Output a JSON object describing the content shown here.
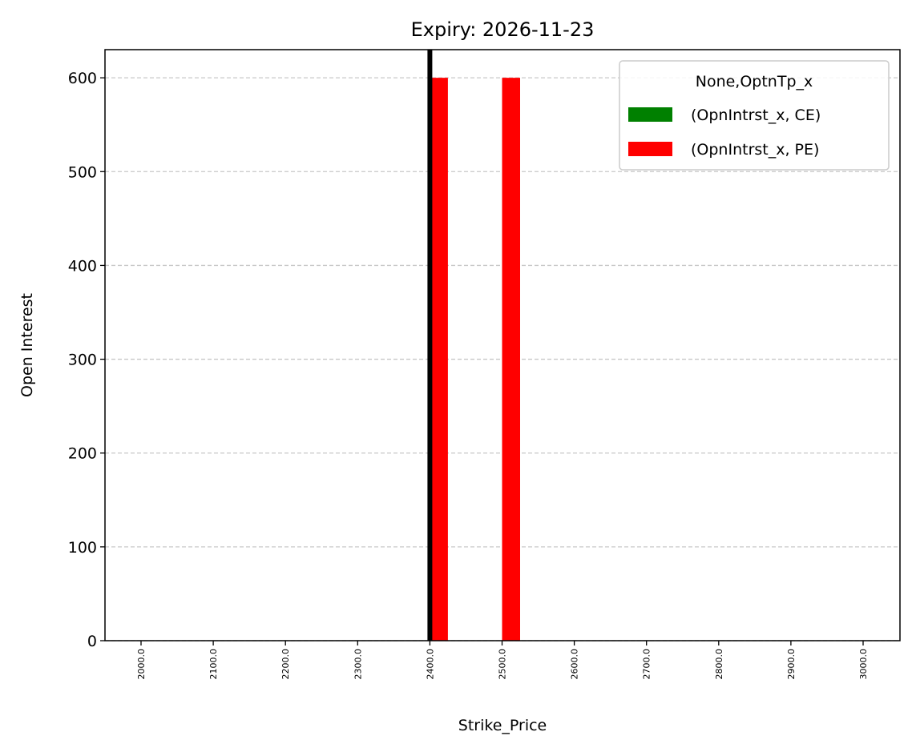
{
  "chart_data": {
    "type": "bar",
    "title": "Expiry: 2026-11-23",
    "xlabel": "Strike_Price",
    "ylabel": "Open Interest",
    "categories": [
      "2000.0",
      "2100.0",
      "2200.0",
      "2300.0",
      "2400.0",
      "2500.0",
      "2600.0",
      "2700.0",
      "2800.0",
      "2900.0",
      "3000.0"
    ],
    "series": [
      {
        "name": "(OpnIntrst_x, CE)",
        "color": "#008000",
        "values": [
          0,
          0,
          0,
          0,
          0,
          0,
          0,
          0,
          0,
          0,
          0
        ]
      },
      {
        "name": "(OpnIntrst_x, PE)",
        "color": "#ff0000",
        "values": [
          0,
          0,
          0,
          0,
          600,
          600,
          0,
          0,
          0,
          0,
          0
        ]
      }
    ],
    "ylim": [
      0,
      630
    ],
    "yticks": [
      0,
      100,
      200,
      300,
      400,
      500,
      600
    ],
    "grid": "y-dashed",
    "legend": {
      "title": "None,OptnTp_x",
      "placement": "top-right"
    },
    "reference_line": {
      "category": "2400.0",
      "color": "#000000"
    }
  }
}
